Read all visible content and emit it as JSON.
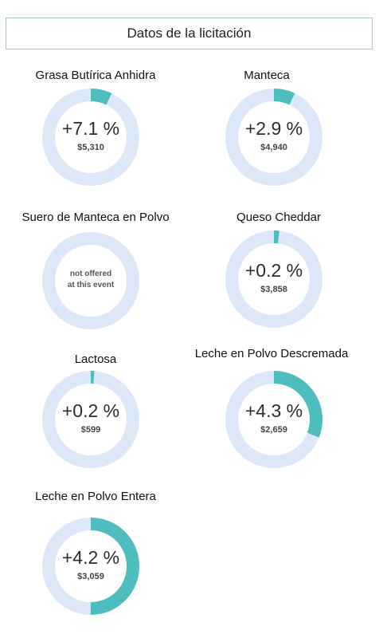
{
  "header": {
    "title": "Datos de la licitación"
  },
  "colors": {
    "track": "#dce8f7",
    "fill": "#4dbdbe"
  },
  "chart_data": {
    "type": "pie",
    "items": [
      {
        "name": "Grasa Butírica Anhidra",
        "change_label": "+7.1 %",
        "price": "$5,310",
        "change": 7.1,
        "fill_fraction": 0.071
      },
      {
        "name": "Manteca",
        "change_label": "+2.9 %",
        "price": "$4,940",
        "change": 2.9,
        "fill_fraction": 0.071
      },
      {
        "name": "Suero de Manteca en Polvo",
        "na_line1": "not offered",
        "na_line2": "at this event",
        "change": null,
        "fill_fraction": 0
      },
      {
        "name": "Queso Cheddar",
        "change_label": "+0.2 %",
        "price": "$3,858",
        "change": 0.2,
        "fill_fraction": 0.018
      },
      {
        "name": "Lactosa",
        "change_label": "+0.2 %",
        "price": "$599",
        "change": 0.2,
        "fill_fraction": 0.012
      },
      {
        "name": "Leche en Polvo Descremada",
        "change_label": "+4.3 %",
        "price": "$2,659",
        "change": 4.3,
        "fill_fraction": 0.31
      },
      {
        "name": "Leche en Polvo Entera",
        "change_label": "+4.2 %",
        "price": "$3,059",
        "change": 4.2,
        "fill_fraction": 0.5
      }
    ]
  }
}
